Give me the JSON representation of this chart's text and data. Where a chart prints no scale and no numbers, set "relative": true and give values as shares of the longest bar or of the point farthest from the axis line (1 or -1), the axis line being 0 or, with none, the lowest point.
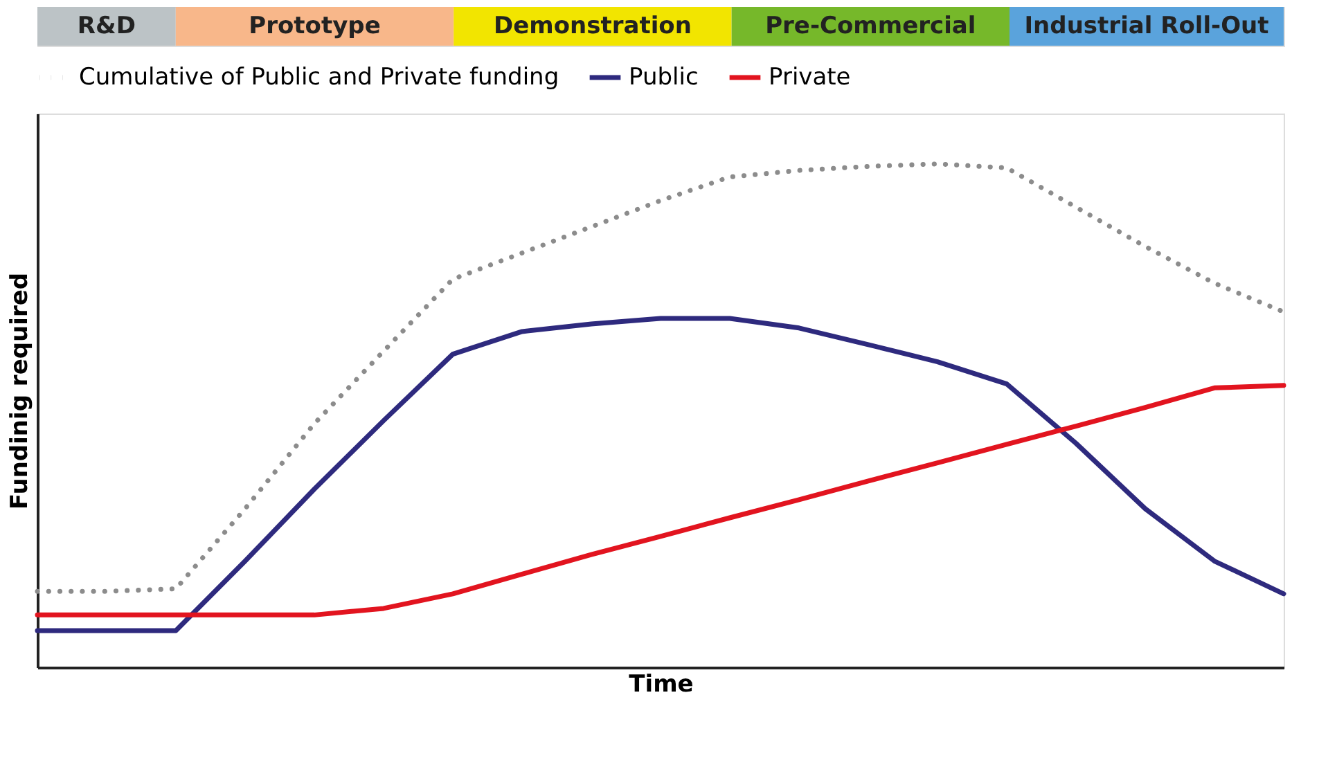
{
  "chart_data": [
    {
      "type": "bar",
      "orientation": "horizontal",
      "stacked": true,
      "relative": true,
      "legend": false,
      "categories": [
        null
      ],
      "series": [
        {
          "name": "R&D",
          "color": "#bcc3c6",
          "values": [
            0.111
          ]
        },
        {
          "name": "Prototype",
          "color": "#f8b78a",
          "values": [
            0.223
          ]
        },
        {
          "name": "Demonstration",
          "color": "#f2e500",
          "values": [
            0.223
          ]
        },
        {
          "name": "Pre-Commercial",
          "color": "#76b82a",
          "values": [
            0.223
          ]
        },
        {
          "name": "Industrial Roll-Out",
          "color": "#5aa3dc",
          "values": [
            0.22
          ]
        }
      ]
    },
    {
      "type": "line",
      "relative": true,
      "grid": false,
      "legend": "top",
      "xlabel": "Time",
      "ylabel": "Fundinig required",
      "categories": [
        null,
        null,
        null,
        null,
        null,
        null,
        null,
        null,
        null,
        null,
        null,
        null,
        null,
        null,
        null,
        null,
        null,
        null,
        null
      ],
      "series": [
        {
          "name": "Cumulative of Public and Private funding",
          "color": "#8c8c8c",
          "line_style": "dotted",
          "values": [
            0.151,
            0.151,
            0.156,
            0.315,
            0.484,
            0.628,
            0.771,
            0.823,
            0.875,
            0.927,
            0.974,
            0.987,
            0.995,
            1,
            0.992,
            0.914,
            0.836,
            0.763,
            0.706
          ]
        },
        {
          "name": "Public",
          "color": "#2e2a7e",
          "line_style": "solid",
          "values": [
            0.073,
            0.073,
            0.073,
            0.211,
            0.354,
            0.49,
            0.622,
            0.667,
            0.682,
            0.693,
            0.693,
            0.674,
            0.641,
            0.607,
            0.563,
            0.445,
            0.315,
            0.211,
            0.146
          ]
        },
        {
          "name": "Private",
          "color": "#e2141f",
          "line_style": "solid",
          "values": [
            0.104,
            0.104,
            0.104,
            0.104,
            0.104,
            0.117,
            0.146,
            0.185,
            0.224,
            0.26,
            0.297,
            0.333,
            0.37,
            0.406,
            0.443,
            0.479,
            0.516,
            0.555,
            0.56
          ]
        }
      ]
    }
  ]
}
